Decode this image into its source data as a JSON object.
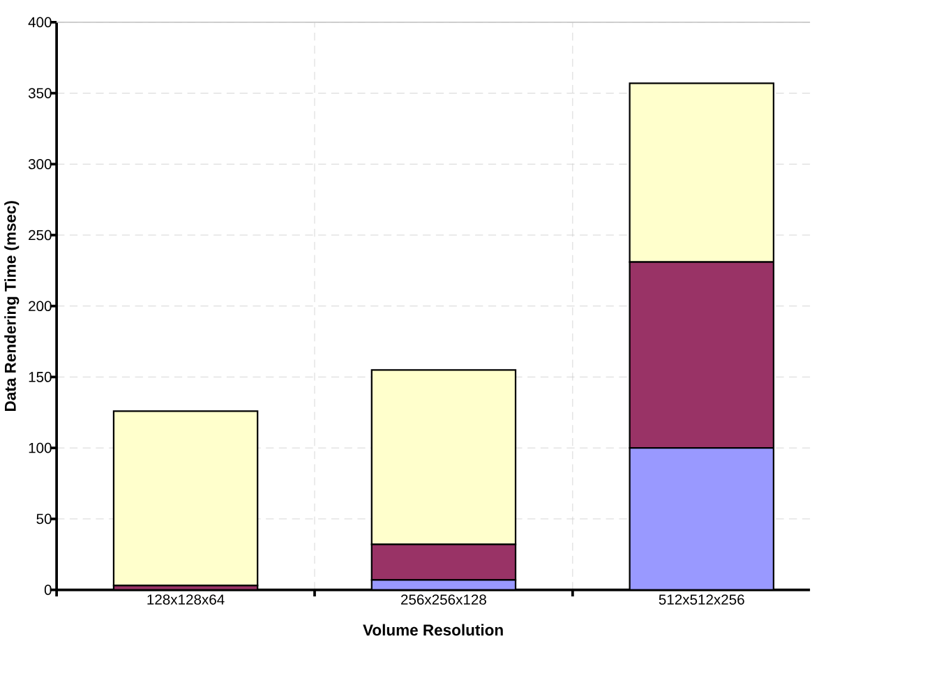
{
  "chart_data": {
    "type": "bar",
    "stacked": true,
    "xlabel": "Volume Resolution",
    "ylabel": "Data Rendering Time (msec)",
    "categories": [
      "128x128x64",
      "256x256x128",
      "512x512x256"
    ],
    "series": [
      {
        "color": "#9999ff",
        "values": [
          0,
          7,
          100
        ]
      },
      {
        "color": "#993366",
        "values": [
          3,
          25,
          131
        ]
      },
      {
        "color": "#ffffcc",
        "values": [
          123,
          123,
          126
        ]
      }
    ],
    "ylim": [
      0,
      400
    ],
    "yticks": [
      0,
      50,
      100,
      150,
      200,
      250,
      300,
      350,
      400
    ],
    "grid": true
  }
}
